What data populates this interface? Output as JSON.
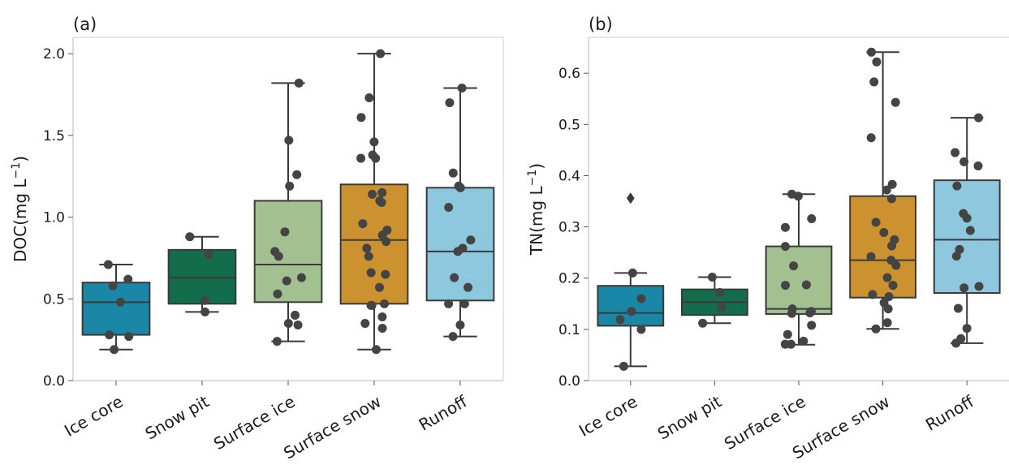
{
  "chart_data": [
    {
      "type": "boxplot",
      "panel_label": "(a)",
      "ylabel": "DOC(mg L",
      "ylabel_sup": "−1",
      "ylabel_close": ")",
      "ylim": [
        0,
        2.1
      ],
      "yticks": [
        "0.0",
        "0.5",
        "1.0",
        "1.5",
        "2.0"
      ],
      "ytick_values": [
        0,
        0.5,
        1.0,
        1.5,
        2.0
      ],
      "grid": false,
      "categories": [
        "Ice core",
        "Snow pit",
        "Surface ice",
        "Surface snow",
        "Runoff"
      ],
      "colors": [
        "#1a87a6",
        "#136d4c",
        "#a3c190",
        "#cc9230",
        "#8dc8df"
      ],
      "boxes": [
        {
          "q1": 0.28,
          "median": 0.48,
          "q3": 0.6,
          "whisker_low": 0.19,
          "whisker_high": 0.71,
          "outliers": []
        },
        {
          "q1": 0.47,
          "median": 0.63,
          "q3": 0.8,
          "whisker_low": 0.42,
          "whisker_high": 0.88,
          "outliers": []
        },
        {
          "q1": 0.48,
          "median": 0.71,
          "q3": 1.1,
          "whisker_low": 0.24,
          "whisker_high": 1.82,
          "outliers": []
        },
        {
          "q1": 0.47,
          "median": 0.86,
          "q3": 1.2,
          "whisker_low": 0.19,
          "whisker_high": 2.0,
          "outliers": []
        },
        {
          "q1": 0.49,
          "median": 0.79,
          "q3": 1.18,
          "whisker_low": 0.27,
          "whisker_high": 1.79,
          "outliers": []
        }
      ],
      "points": [
        [
          0.71,
          0.62,
          0.58,
          0.48,
          0.28,
          0.27,
          0.19
        ],
        [
          0.88,
          0.77,
          0.49,
          0.42
        ],
        [
          1.82,
          1.47,
          1.26,
          1.19,
          0.91,
          0.79,
          0.76,
          0.63,
          0.61,
          0.53,
          0.4,
          0.35,
          0.34,
          0.24
        ],
        [
          2.0,
          1.73,
          1.61,
          1.46,
          1.38,
          1.36,
          1.36,
          1.15,
          1.14,
          1.1,
          1.09,
          0.96,
          0.92,
          0.89,
          0.85,
          0.81,
          0.76,
          0.66,
          0.65,
          0.57,
          0.47,
          0.46,
          0.46,
          0.39,
          0.35,
          0.32,
          0.19
        ],
        [
          1.79,
          1.7,
          1.27,
          1.19,
          1.18,
          1.06,
          0.86,
          0.81,
          0.79,
          0.63,
          0.57,
          0.47,
          0.47,
          0.34,
          0.27
        ]
      ]
    },
    {
      "type": "boxplot",
      "panel_label": "(b)",
      "ylabel": "TN(mg L",
      "ylabel_sup": "−1",
      "ylabel_close": ")",
      "ylim": [
        0,
        0.67
      ],
      "yticks": [
        "0.0",
        "0.1",
        "0.2",
        "0.3",
        "0.4",
        "0.5",
        "0.6"
      ],
      "ytick_values": [
        0,
        0.1,
        0.2,
        0.3,
        0.4,
        0.5,
        0.6
      ],
      "grid": false,
      "categories": [
        "Ice core",
        "Snow pit",
        "Surface ice",
        "Surface snow",
        "Runoff"
      ],
      "colors": [
        "#1a87a6",
        "#136d4c",
        "#a3c190",
        "#cc9230",
        "#8dc8df"
      ],
      "boxes": [
        {
          "q1": 0.107,
          "median": 0.132,
          "q3": 0.185,
          "whisker_low": 0.028,
          "whisker_high": 0.21,
          "outliers": [
            0.356
          ]
        },
        {
          "q1": 0.128,
          "median": 0.153,
          "q3": 0.178,
          "whisker_low": 0.112,
          "whisker_high": 0.202,
          "outliers": []
        },
        {
          "q1": 0.13,
          "median": 0.14,
          "q3": 0.262,
          "whisker_low": 0.07,
          "whisker_high": 0.364,
          "outliers": []
        },
        {
          "q1": 0.162,
          "median": 0.235,
          "q3": 0.36,
          "whisker_low": 0.101,
          "whisker_high": 0.641,
          "outliers": []
        },
        {
          "q1": 0.171,
          "median": 0.275,
          "q3": 0.391,
          "whisker_low": 0.073,
          "whisker_high": 0.513,
          "outliers": []
        }
      ],
      "points": [
        [
          0.21,
          0.16,
          0.135,
          0.119,
          0.1,
          0.028
        ],
        [
          0.202,
          0.172,
          0.143,
          0.112
        ],
        [
          0.364,
          0.36,
          0.316,
          0.299,
          0.262,
          0.224,
          0.187,
          0.186,
          0.14,
          0.135,
          0.132,
          0.131,
          0.108,
          0.09,
          0.077,
          0.071,
          0.071
        ],
        [
          0.641,
          0.622,
          0.583,
          0.543,
          0.474,
          0.383,
          0.372,
          0.355,
          0.309,
          0.289,
          0.275,
          0.263,
          0.242,
          0.235,
          0.225,
          0.201,
          0.186,
          0.168,
          0.164,
          0.152,
          0.14,
          0.113,
          0.101
        ],
        [
          0.513,
          0.445,
          0.427,
          0.419,
          0.38,
          0.326,
          0.317,
          0.293,
          0.256,
          0.243,
          0.184,
          0.181,
          0.141,
          0.102,
          0.082,
          0.073
        ]
      ]
    }
  ]
}
